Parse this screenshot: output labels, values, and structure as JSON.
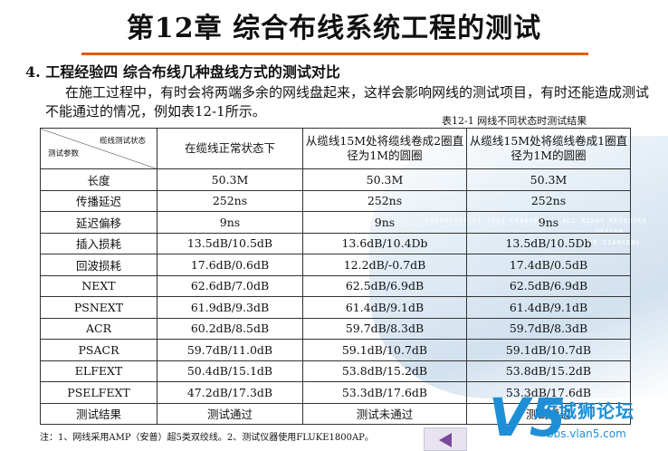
{
  "title": "第12章 综合布线系统工程的测试",
  "subtitle": "4. 工程经验四 综合布线几种盘线方式的测试对比",
  "paragraph": "在施工过程中，有时会将两端多余的网线盘起来，这样会影响网线的测试项目，有时还能造成测试不能通过的情况，例如表12-1所示。",
  "caption": "表12-1 网线不同状态时测试结果",
  "table": {
    "corner_top": "缆线测试状态",
    "corner_bottom": "测试参数",
    "columns": [
      "在缆线正常状态下",
      "从缆线15M处将缆线卷成2圈直径为1M的圆圈",
      "从缆线15M处将缆线卷成1圈直径为1M的圆圈"
    ],
    "rows": [
      {
        "param": "长度",
        "values": [
          "50.3M",
          "50.3M",
          "50.3M"
        ]
      },
      {
        "param": "传播延迟",
        "values": [
          "252ns",
          "252ns",
          "252ns"
        ]
      },
      {
        "param": "延迟偏移",
        "values": [
          "9ns",
          "9ns",
          "9ns"
        ]
      },
      {
        "param": "插入损耗",
        "values": [
          "13.5dB/10.5dB",
          "13.6dB/10.4Db",
          "13.5dB/10.5Db"
        ]
      },
      {
        "param": "回波损耗",
        "values": [
          "17.6dB/0.6dB",
          "12.2dB/-0.7dB",
          "17.4dB/0.5dB"
        ]
      },
      {
        "param": "NEXT",
        "values": [
          "62.6dB/7.0dB",
          "62.5dB/6.9dB",
          "62.5dB/6.9dB"
        ]
      },
      {
        "param": "PSNEXT",
        "values": [
          "61.9dB/9.3dB",
          "61.4dB/9.1dB",
          "61.4dB/9.1dB"
        ]
      },
      {
        "param": "ACR",
        "values": [
          "60.2dB/8.5dB",
          "59.7dB/8.3dB",
          "59.7dB/8.3dB"
        ]
      },
      {
        "param": "PSACR",
        "values": [
          "59.7dB/11.0dB",
          "59.1dB/10.7dB",
          "59.1dB/10.7dB"
        ]
      },
      {
        "param": "ELFEXT",
        "values": [
          "50.4dB/15.1dB",
          "53.8dB/15.2dB",
          "53.8dB/15.2dB"
        ]
      },
      {
        "param": "PSELFEXT",
        "values": [
          "47.2dB/17.3dB",
          "53.3dB/17.6dB",
          "53.3dB/17.6dB"
        ]
      },
      {
        "param": "测试结果",
        "values": [
          "测试通过",
          "测试未通过",
          "测试通过"
        ]
      }
    ]
  },
  "note": "注：1、网线采用AMP（安普）超5类双绞线。2、测试仪器使用FLUKE1800AP。",
  "decor_text": [
    "COPYRIGHT(C) 2001 CHANGBO... ALL RIGHT RESERVED",
    "DESIGN",
    "AND TIANSENG"
  ],
  "logo": {
    "mark": "V5",
    "name": "玫城狮论坛",
    "url": "bbs.vlan5.com"
  },
  "colors": {
    "accent_rule": "#e55a0a",
    "logo": "#1e8fd6",
    "nav_arrow": "#7a4a9a"
  },
  "icons": {
    "nav": "arrow-left-icon"
  }
}
